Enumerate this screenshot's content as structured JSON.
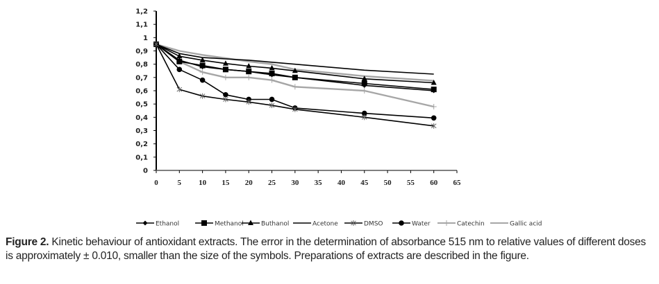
{
  "chart_data": {
    "type": "line",
    "title": "",
    "xlabel": "",
    "ylabel": "",
    "xlim": [
      0,
      65
    ],
    "ylim": [
      0,
      1.2
    ],
    "x_ticks": [
      "0",
      "5",
      "10",
      "15",
      "20",
      "25",
      "30",
      "35",
      "40",
      "45",
      "50",
      "55",
      "60",
      "65"
    ],
    "x_tick_values": [
      0,
      5,
      10,
      15,
      20,
      25,
      30,
      35,
      40,
      45,
      50,
      55,
      60,
      65
    ],
    "y_ticks": [
      "0",
      "0,1",
      "0,2",
      "0,3",
      "0,4",
      "0,5",
      "0,6",
      "0,7",
      "0,8",
      "0,9",
      "1",
      "1,1",
      "1,2"
    ],
    "y_tick_values": [
      0,
      0.1,
      0.2,
      0.3,
      0.4,
      0.5,
      0.6,
      0.7,
      0.8,
      0.9,
      1.0,
      1.1,
      1.2
    ],
    "grid": false,
    "legend_position": "bottom",
    "x": [
      0,
      5,
      10,
      15,
      20,
      25,
      30,
      45,
      60
    ],
    "series": [
      {
        "name": "Ethanol",
        "marker": "diamond",
        "color": "#000000",
        "values": [
          0.95,
          0.83,
          0.78,
          0.76,
          0.745,
          0.72,
          0.7,
          0.64,
          0.6
        ]
      },
      {
        "name": "Methanol",
        "marker": "square",
        "color": "#000000",
        "values": [
          0.95,
          0.82,
          0.79,
          0.76,
          0.745,
          0.73,
          0.7,
          0.655,
          0.61
        ]
      },
      {
        "name": "Buthanol",
        "marker": "triangle",
        "color": "#000000",
        "values": [
          0.95,
          0.86,
          0.83,
          0.805,
          0.785,
          0.77,
          0.75,
          0.69,
          0.66
        ]
      },
      {
        "name": "Acetone",
        "marker": "none",
        "color": "#000000",
        "values": [
          0.95,
          0.88,
          0.85,
          0.84,
          0.83,
          0.815,
          0.8,
          0.755,
          0.725
        ]
      },
      {
        "name": "DMSO",
        "marker": "star",
        "color": "#000000",
        "values": [
          0.95,
          0.61,
          0.56,
          0.535,
          0.515,
          0.49,
          0.46,
          0.4,
          0.335
        ]
      },
      {
        "name": "Water",
        "marker": "circle",
        "color": "#000000",
        "values": [
          0.95,
          0.76,
          0.68,
          0.57,
          0.535,
          0.535,
          0.47,
          0.43,
          0.395
        ]
      },
      {
        "name": "Catechin",
        "marker": "plus",
        "color": "#a6a6a6",
        "values": [
          0.95,
          0.82,
          0.74,
          0.7,
          0.7,
          0.68,
          0.63,
          0.6,
          0.48
        ]
      },
      {
        "name": "Gallic acid",
        "marker": "none",
        "color": "#a6a6a6",
        "values": [
          0.95,
          0.9,
          0.87,
          0.845,
          0.82,
          0.8,
          0.76,
          0.71,
          0.675
        ]
      }
    ]
  },
  "caption": {
    "label": "Figure 2.",
    "text": " Kinetic behaviour of antioxidant extracts. The error in the determination of absorbance 515 nm to relative values of different doses is approximately ± 0.010, smaller than the size of the symbols. Preparations of extracts are described in the figure."
  }
}
